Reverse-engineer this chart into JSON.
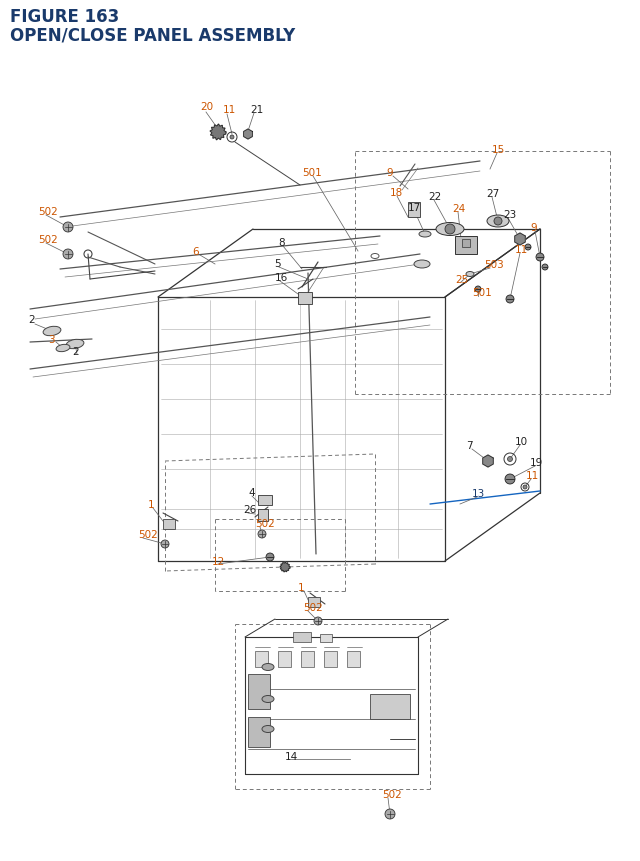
{
  "title_line1": "FIGURE 163",
  "title_line2": "OPEN/CLOSE PANEL ASSEMBLY",
  "title_color": "#1a3a6b",
  "title_fontsize": 12,
  "bg_color": "#ffffff",
  "lc_orange": "#cc5500",
  "lc_blue": "#1a3a6b",
  "lc_teal": "#006666",
  "lc_black": "#222222",
  "lc_gray": "#555555",
  "line_color": "#333333",
  "dash_color": "#777777"
}
